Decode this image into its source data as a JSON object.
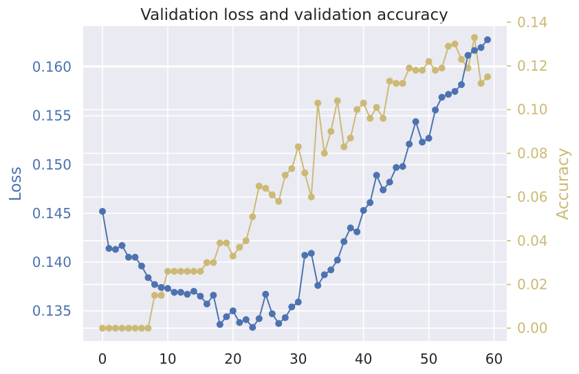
{
  "colors": {
    "loss": "#4c72b0",
    "accuracy": "#ccb974",
    "plot_bg": "#eaeaf2",
    "grid": "#ffffff",
    "text": "#262626"
  },
  "chart_data": {
    "type": "line",
    "title": "Validation loss and validation accuracy",
    "xlabel": "",
    "grid": true,
    "x": [
      0,
      1,
      2,
      3,
      4,
      5,
      6,
      7,
      8,
      9,
      10,
      11,
      12,
      13,
      14,
      15,
      16,
      17,
      18,
      19,
      20,
      21,
      22,
      23,
      24,
      25,
      26,
      27,
      28,
      29,
      30,
      31,
      32,
      33,
      34,
      35,
      36,
      37,
      38,
      39,
      40,
      41,
      42,
      43,
      44,
      45,
      46,
      47,
      48,
      49,
      50,
      51,
      52,
      53,
      54,
      55,
      56,
      57,
      58,
      59
    ],
    "xlim": [
      -2.95,
      61.95
    ],
    "xticks": [
      0,
      10,
      20,
      30,
      40,
      50,
      60
    ],
    "y_left": {
      "label": "Loss",
      "lim": [
        0.1319,
        0.1642
      ],
      "ticks": [
        0.135,
        0.14,
        0.145,
        0.15,
        0.155,
        0.16
      ],
      "tick_labels": [
        "0.135",
        "0.140",
        "0.145",
        "0.150",
        "0.155",
        "0.160"
      ]
    },
    "y_right": {
      "label": "Accuracy",
      "lim": [
        -0.0059,
        0.1382
      ],
      "ticks": [
        0.0,
        0.02,
        0.04,
        0.06,
        0.08,
        0.1,
        0.12,
        0.14
      ],
      "tick_labels": [
        "0.00",
        "0.02",
        "0.04",
        "0.06",
        "0.08",
        "0.10",
        "0.12",
        "0.14"
      ]
    },
    "series": [
      {
        "name": "",
        "axis": "left",
        "values": [
          0.1452,
          0.1414,
          0.1413,
          0.1417,
          0.1405,
          0.1405,
          0.1396,
          0.1384,
          0.1377,
          0.1374,
          0.1373,
          0.1369,
          0.1369,
          0.1367,
          0.137,
          0.1365,
          0.1357,
          0.1366,
          0.1336,
          0.1344,
          0.135,
          0.1338,
          0.1341,
          0.1333,
          0.1342,
          0.1367,
          0.1347,
          0.1337,
          0.1343,
          0.1354,
          0.1359,
          0.1407,
          0.1409,
          0.1376,
          0.1387,
          0.1392,
          0.1402,
          0.1421,
          0.1435,
          0.1431,
          0.1453,
          0.1461,
          0.1489,
          0.1474,
          0.1482,
          0.1497,
          0.1498,
          0.1521,
          0.1544,
          0.1523,
          0.1527,
          0.1556,
          0.1569,
          0.1572,
          0.1575,
          0.1582,
          0.1612,
          0.1617,
          0.162,
          0.1628
        ]
      },
      {
        "name": "",
        "axis": "right",
        "values": [
          0.0,
          0.0,
          0.0,
          0.0,
          0.0,
          0.0,
          0.0,
          0.0,
          0.015,
          0.015,
          0.026,
          0.026,
          0.026,
          0.026,
          0.026,
          0.026,
          0.03,
          0.03,
          0.039,
          0.039,
          0.033,
          0.037,
          0.04,
          0.051,
          0.065,
          0.064,
          0.061,
          0.058,
          0.07,
          0.073,
          0.083,
          0.071,
          0.06,
          0.103,
          0.08,
          0.09,
          0.104,
          0.083,
          0.087,
          0.1,
          0.103,
          0.096,
          0.101,
          0.096,
          0.113,
          0.112,
          0.112,
          0.119,
          0.118,
          0.118,
          0.122,
          0.118,
          0.119,
          0.129,
          0.13,
          0.123,
          0.119,
          0.133,
          0.112,
          0.115
        ]
      }
    ]
  }
}
